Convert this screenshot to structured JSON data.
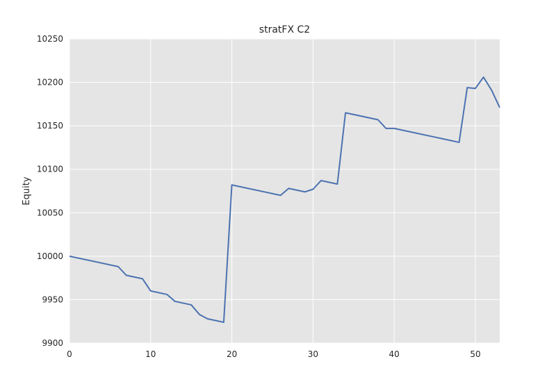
{
  "chart_data": {
    "type": "line",
    "title": "stratFX C2",
    "xlabel": "",
    "ylabel": "Equity",
    "xlim": [
      0,
      53
    ],
    "ylim": [
      9900,
      10250
    ],
    "xticks": [
      0,
      10,
      20,
      30,
      40,
      50
    ],
    "yticks": [
      9900,
      9950,
      10000,
      10050,
      10100,
      10150,
      10200,
      10250
    ],
    "grid": true,
    "background": "#e5e5e5",
    "grid_color": "#ffffff",
    "line_color": "#4c72b0",
    "series": [
      {
        "x": [
          0,
          6,
          7,
          9,
          10,
          12,
          13,
          15,
          16,
          17,
          19,
          20,
          26,
          27,
          29,
          30,
          31,
          33,
          34,
          38,
          39,
          40,
          48,
          49,
          50,
          51,
          52,
          53
        ],
        "values": [
          10000,
          9988,
          9978,
          9974,
          9960,
          9956,
          9948,
          9944,
          9933,
          9928,
          9924,
          10082,
          10070,
          10078,
          10074,
          10077,
          10087,
          10083,
          10165,
          10157,
          10147,
          10147,
          10131,
          10194,
          10193,
          10206,
          10191,
          10171
        ]
      }
    ]
  }
}
